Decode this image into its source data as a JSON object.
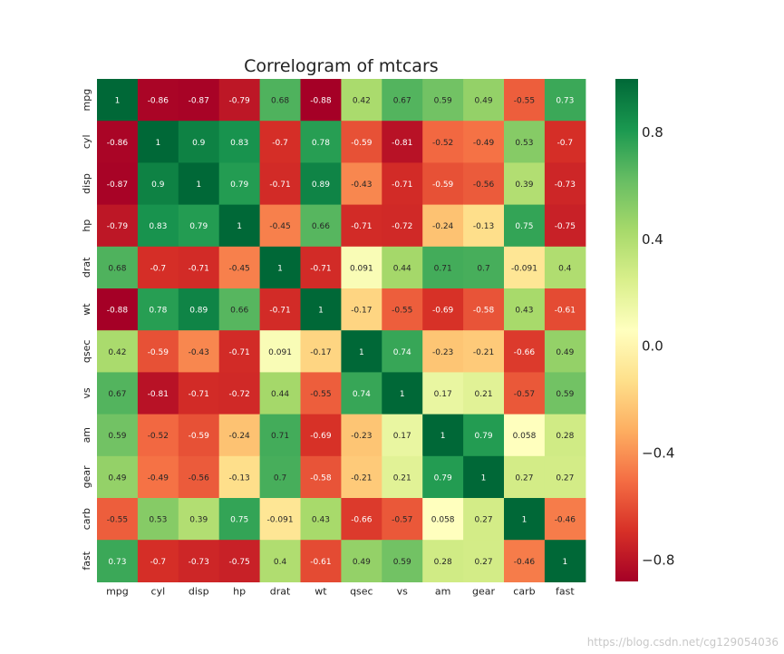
{
  "chart_data": {
    "type": "heatmap",
    "title": "Correlogram of mtcars",
    "labels": [
      "mpg",
      "cyl",
      "disp",
      "hp",
      "drat",
      "wt",
      "qsec",
      "vs",
      "am",
      "gear",
      "carb",
      "fast"
    ],
    "matrix": [
      [
        1,
        -0.86,
        -0.87,
        -0.79,
        0.68,
        -0.88,
        0.42,
        0.67,
        0.59,
        0.49,
        -0.55,
        0.73
      ],
      [
        -0.86,
        1,
        0.9,
        0.83,
        -0.7,
        0.78,
        -0.59,
        -0.81,
        -0.52,
        -0.49,
        0.53,
        -0.7
      ],
      [
        -0.87,
        0.9,
        1,
        0.79,
        -0.71,
        0.89,
        -0.43,
        -0.71,
        -0.59,
        -0.56,
        0.39,
        -0.73
      ],
      [
        -0.79,
        0.83,
        0.79,
        1,
        -0.45,
        0.66,
        -0.71,
        -0.72,
        -0.24,
        -0.13,
        0.75,
        -0.75
      ],
      [
        0.68,
        -0.7,
        -0.71,
        -0.45,
        1,
        -0.71,
        0.091,
        0.44,
        0.71,
        0.7,
        -0.091,
        0.4
      ],
      [
        -0.88,
        0.78,
        0.89,
        0.66,
        -0.71,
        1,
        -0.17,
        -0.55,
        -0.69,
        -0.58,
        0.43,
        -0.61
      ],
      [
        0.42,
        -0.59,
        -0.43,
        -0.71,
        0.091,
        -0.17,
        1,
        0.74,
        -0.23,
        -0.21,
        -0.66,
        0.49
      ],
      [
        0.67,
        -0.81,
        -0.71,
        -0.72,
        0.44,
        -0.55,
        0.74,
        1,
        0.17,
        0.21,
        -0.57,
        0.59
      ],
      [
        0.59,
        -0.52,
        -0.59,
        -0.24,
        0.71,
        -0.69,
        -0.23,
        0.17,
        1,
        0.79,
        0.058,
        0.28
      ],
      [
        0.49,
        -0.49,
        -0.56,
        -0.13,
        0.7,
        -0.58,
        -0.21,
        0.21,
        0.79,
        1,
        0.27,
        0.27
      ],
      [
        -0.55,
        0.53,
        0.39,
        0.75,
        -0.091,
        0.43,
        -0.66,
        -0.57,
        0.058,
        0.27,
        1,
        -0.46
      ],
      [
        0.73,
        -0.7,
        -0.73,
        -0.75,
        0.4,
        -0.61,
        0.49,
        0.59,
        0.28,
        0.27,
        -0.46,
        1
      ]
    ],
    "colormap": "RdYlGn",
    "color_range": [
      -0.88,
      1
    ],
    "colorbar_ticks": [
      0.8,
      0.4,
      0.0,
      -0.4,
      -0.8
    ],
    "colorbar_tick_labels": [
      "0.8",
      "0.4",
      "0.0",
      "−0.4",
      "−0.8"
    ],
    "annotated": true,
    "grid": false
  },
  "watermark": "https://blog.csdn.net/cg129054036"
}
